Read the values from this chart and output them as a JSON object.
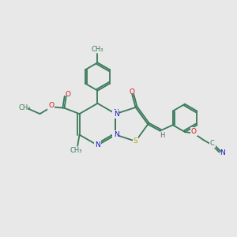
{
  "background_color": "#e8e8e8",
  "bond_color": "#3a7a5a",
  "n_color": "#1a1acc",
  "o_color": "#cc1a1a",
  "s_color": "#aaaa00",
  "h_color": "#666666",
  "figsize": [
    3.0,
    3.0
  ],
  "dpi": 100,
  "lw": 1.3,
  "fs": 6.5,
  "xlim": [
    0,
    10
  ],
  "ylim": [
    0,
    10
  ]
}
